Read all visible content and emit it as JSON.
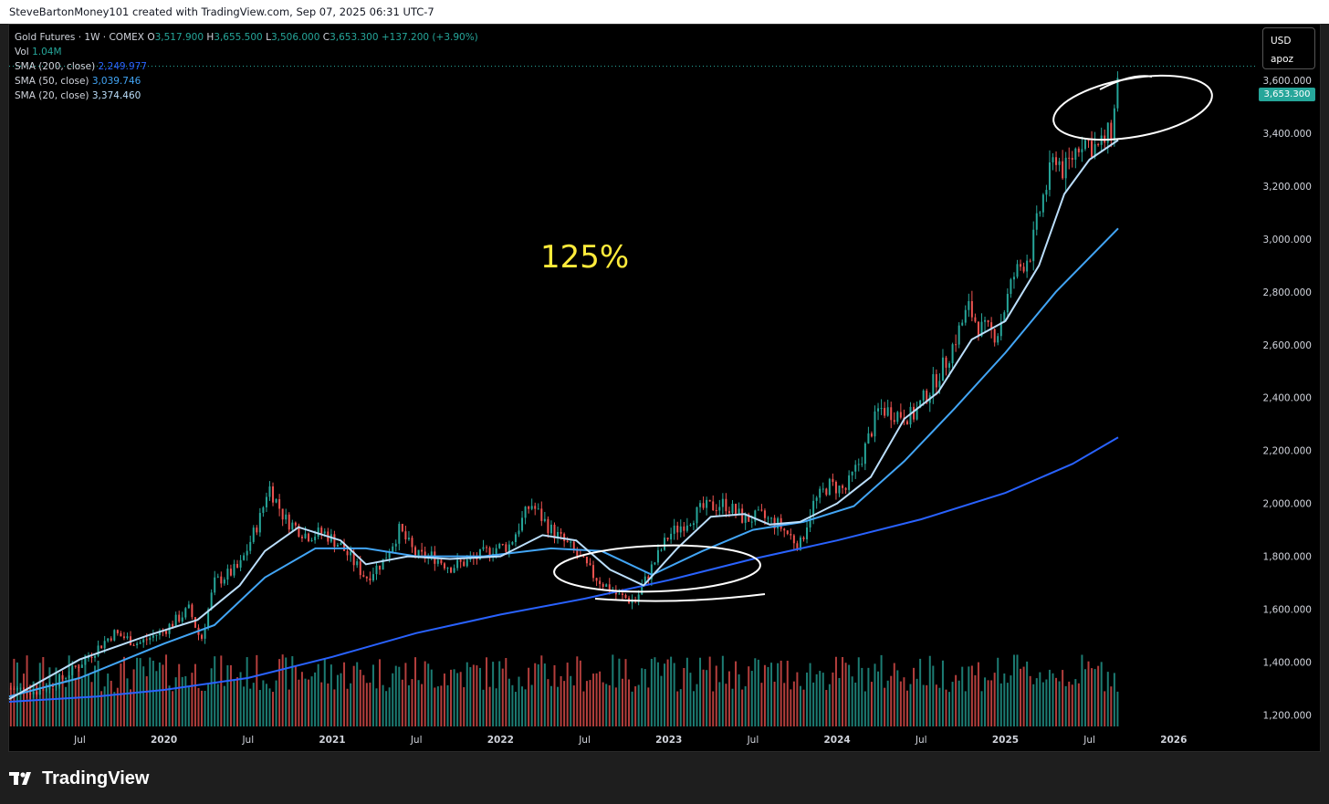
{
  "header": {
    "text": "SteveBartonMoney101 created with TradingView.com, Sep 07, 2025 06:31 UTC-7"
  },
  "legend": {
    "symbol": "Gold Futures · 1W · COMEX",
    "o_key": "O",
    "o_val": "3,517.900",
    "h_key": "H",
    "h_val": "3,655.500",
    "l_key": "L",
    "l_val": "3,506.000",
    "c_key": "C",
    "c_val": "3,653.300",
    "change": "+137.200 (+3.90%)",
    "vol_label": "Vol",
    "vol_val": "1.04M",
    "sma200_label": "SMA (200, close)",
    "sma200_val": "2,249.977",
    "sma50_label": "SMA (50, close)",
    "sma50_val": "3,039.746",
    "sma20_label": "SMA (20, close)",
    "sma20_val": "3,374.460"
  },
  "currency": {
    "code": "USD",
    "sub": "apoz"
  },
  "last_price_tag": "3,653.300",
  "annotation_text": "125%",
  "footer": {
    "logo_text": "TradingView"
  },
  "colors": {
    "up": "#26a69a",
    "down": "#ef5350",
    "sma200": "#2962ff",
    "sma50": "#42a5f5",
    "sma20": "#bbdefb",
    "annotation": "#ffeb3b"
  },
  "chart_data": {
    "type": "candlestick",
    "title": "Gold Futures · 1W · COMEX",
    "price_axis_ticks": [
      "1,200.000",
      "1,400.000",
      "1,600.000",
      "1,800.000",
      "2,000.000",
      "2,200.000",
      "2,400.000",
      "2,600.000",
      "2,800.000",
      "3,000.000",
      "3,200.000",
      "3,400.000",
      "3,600.000"
    ],
    "ylim": [
      1150,
      3800
    ],
    "time_axis_ticks": [
      {
        "label": "Jul",
        "t": 2019.5,
        "bold": false
      },
      {
        "label": "2020",
        "t": 2020.0,
        "bold": true
      },
      {
        "label": "Jul",
        "t": 2020.5,
        "bold": false
      },
      {
        "label": "2021",
        "t": 2021.0,
        "bold": true
      },
      {
        "label": "Jul",
        "t": 2021.5,
        "bold": false
      },
      {
        "label": "2022",
        "t": 2022.0,
        "bold": true
      },
      {
        "label": "Jul",
        "t": 2022.5,
        "bold": false
      },
      {
        "label": "2023",
        "t": 2023.0,
        "bold": true
      },
      {
        "label": "Jul",
        "t": 2023.5,
        "bold": false
      },
      {
        "label": "2024",
        "t": 2024.0,
        "bold": true
      },
      {
        "label": "Jul",
        "t": 2024.5,
        "bold": false
      },
      {
        "label": "2025",
        "t": 2025.0,
        "bold": true
      },
      {
        "label": "Jul",
        "t": 2025.5,
        "bold": false
      },
      {
        "label": "2026",
        "t": 2026.0,
        "bold": true
      }
    ],
    "xlim": [
      2019.08,
      2026.5
    ],
    "price_path": [
      [
        2019.09,
        1300
      ],
      [
        2019.25,
        1290
      ],
      [
        2019.4,
        1340
      ],
      [
        2019.55,
        1420
      ],
      [
        2019.7,
        1510
      ],
      [
        2019.85,
        1470
      ],
      [
        2020.0,
        1520
      ],
      [
        2020.15,
        1600
      ],
      [
        2020.22,
        1480
      ],
      [
        2020.3,
        1700
      ],
      [
        2020.45,
        1760
      ],
      [
        2020.58,
        1960
      ],
      [
        2020.62,
        2070
      ],
      [
        2020.72,
        1940
      ],
      [
        2020.85,
        1880
      ],
      [
        2020.95,
        1890
      ],
      [
        2021.05,
        1840
      ],
      [
        2021.2,
        1720
      ],
      [
        2021.3,
        1780
      ],
      [
        2021.4,
        1900
      ],
      [
        2021.5,
        1800
      ],
      [
        2021.6,
        1800
      ],
      [
        2021.7,
        1760
      ],
      [
        2021.85,
        1790
      ],
      [
        2021.95,
        1830
      ],
      [
        2022.05,
        1840
      ],
      [
        2022.18,
        2000
      ],
      [
        2022.3,
        1900
      ],
      [
        2022.42,
        1830
      ],
      [
        2022.55,
        1730
      ],
      [
        2022.7,
        1650
      ],
      [
        2022.8,
        1630
      ],
      [
        2022.9,
        1760
      ],
      [
        2023.0,
        1880
      ],
      [
        2023.1,
        1930
      ],
      [
        2023.2,
        1980
      ],
      [
        2023.33,
        2000
      ],
      [
        2023.45,
        1940
      ],
      [
        2023.55,
        1950
      ],
      [
        2023.65,
        1920
      ],
      [
        2023.78,
        1840
      ],
      [
        2023.85,
        1990
      ],
      [
        2023.95,
        2070
      ],
      [
        2024.05,
        2050
      ],
      [
        2024.15,
        2180
      ],
      [
        2024.25,
        2360
      ],
      [
        2024.35,
        2340
      ],
      [
        2024.45,
        2330
      ],
      [
        2024.55,
        2430
      ],
      [
        2024.65,
        2540
      ],
      [
        2024.78,
        2740
      ],
      [
        2024.85,
        2660
      ],
      [
        2024.95,
        2640
      ],
      [
        2025.05,
        2860
      ],
      [
        2025.15,
        2950
      ],
      [
        2025.22,
        3150
      ],
      [
        2025.3,
        3320
      ],
      [
        2025.35,
        3250
      ],
      [
        2025.45,
        3380
      ],
      [
        2025.55,
        3340
      ],
      [
        2025.6,
        3380
      ],
      [
        2025.64,
        3420
      ],
      [
        2025.67,
        3653
      ]
    ],
    "volume_range": [
      0,
      1.6
    ],
    "series": [
      {
        "name": "SMA (200, close)",
        "last": 2249.977,
        "points": [
          [
            2019.08,
            1250
          ],
          [
            2019.6,
            1270
          ],
          [
            2020.0,
            1295
          ],
          [
            2020.5,
            1340
          ],
          [
            2021.0,
            1420
          ],
          [
            2021.5,
            1510
          ],
          [
            2022.0,
            1580
          ],
          [
            2022.5,
            1640
          ],
          [
            2023.0,
            1710
          ],
          [
            2023.5,
            1790
          ],
          [
            2024.0,
            1860
          ],
          [
            2024.5,
            1940
          ],
          [
            2025.0,
            2040
          ],
          [
            2025.4,
            2150
          ],
          [
            2025.67,
            2250
          ]
        ]
      },
      {
        "name": "SMA (50, close)",
        "last": 3039.746,
        "points": [
          [
            2019.08,
            1270
          ],
          [
            2019.5,
            1340
          ],
          [
            2020.0,
            1470
          ],
          [
            2020.3,
            1540
          ],
          [
            2020.6,
            1720
          ],
          [
            2020.9,
            1830
          ],
          [
            2021.2,
            1830
          ],
          [
            2021.5,
            1800
          ],
          [
            2021.9,
            1800
          ],
          [
            2022.3,
            1830
          ],
          [
            2022.6,
            1820
          ],
          [
            2022.9,
            1730
          ],
          [
            2023.2,
            1820
          ],
          [
            2023.5,
            1900
          ],
          [
            2023.8,
            1930
          ],
          [
            2024.1,
            1990
          ],
          [
            2024.4,
            2160
          ],
          [
            2024.7,
            2360
          ],
          [
            2025.0,
            2570
          ],
          [
            2025.3,
            2800
          ],
          [
            2025.67,
            3040
          ]
        ]
      },
      {
        "name": "SMA (20, close)",
        "last": 3374.46,
        "points": [
          [
            2019.08,
            1260
          ],
          [
            2019.5,
            1410
          ],
          [
            2019.9,
            1500
          ],
          [
            2020.2,
            1560
          ],
          [
            2020.45,
            1690
          ],
          [
            2020.6,
            1820
          ],
          [
            2020.8,
            1910
          ],
          [
            2021.05,
            1860
          ],
          [
            2021.2,
            1770
          ],
          [
            2021.45,
            1800
          ],
          [
            2021.7,
            1790
          ],
          [
            2022.0,
            1800
          ],
          [
            2022.25,
            1880
          ],
          [
            2022.45,
            1860
          ],
          [
            2022.65,
            1750
          ],
          [
            2022.85,
            1690
          ],
          [
            2023.05,
            1830
          ],
          [
            2023.25,
            1950
          ],
          [
            2023.45,
            1960
          ],
          [
            2023.6,
            1920
          ],
          [
            2023.78,
            1930
          ],
          [
            2024.0,
            2000
          ],
          [
            2024.2,
            2100
          ],
          [
            2024.4,
            2320
          ],
          [
            2024.6,
            2420
          ],
          [
            2024.8,
            2620
          ],
          [
            2025.0,
            2690
          ],
          [
            2025.2,
            2900
          ],
          [
            2025.35,
            3170
          ],
          [
            2025.5,
            3300
          ],
          [
            2025.67,
            3374
          ]
        ]
      }
    ]
  }
}
